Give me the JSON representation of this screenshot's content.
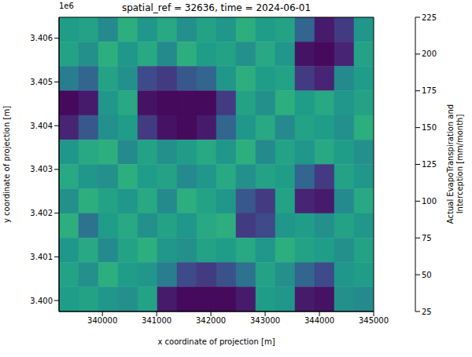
{
  "chart_data": {
    "type": "heatmap",
    "title": "spatial_ref = 32636, time = 2024-06-01",
    "x_label": "x coordinate of projection [m]",
    "y_label": "y coordinate of projection [m]",
    "y_offset": "1e6",
    "xlim": [
      339200,
      345000
    ],
    "xticks": [
      340000,
      341000,
      342000,
      343000,
      344000,
      345000
    ],
    "ylim": [
      3399750,
      3406480
    ],
    "yticks": [
      {
        "value": 3400000,
        "label": "3.400"
      },
      {
        "value": 3401000,
        "label": "3.401"
      },
      {
        "value": 3402000,
        "label": "3.402"
      },
      {
        "value": 3403000,
        "label": "3.403"
      },
      {
        "value": 3404000,
        "label": "3.404"
      },
      {
        "value": 3405000,
        "label": "3.405"
      },
      {
        "value": 3406000,
        "label": "3.406"
      }
    ],
    "grid": false,
    "z": [
      [
        135,
        140,
        120,
        150,
        130,
        145,
        125,
        140,
        130,
        150,
        135,
        140,
        90,
        40,
        60,
        130
      ],
      [
        140,
        125,
        150,
        130,
        145,
        120,
        150,
        135,
        140,
        125,
        145,
        130,
        35,
        30,
        45,
        140
      ],
      [
        110,
        90,
        140,
        125,
        70,
        60,
        80,
        90,
        130,
        150,
        135,
        140,
        60,
        45,
        120,
        135
      ],
      [
        30,
        40,
        130,
        145,
        35,
        30,
        30,
        30,
        60,
        140,
        125,
        150,
        135,
        145,
        130,
        140
      ],
      [
        45,
        80,
        125,
        135,
        60,
        35,
        30,
        40,
        90,
        130,
        145,
        120,
        140,
        135,
        125,
        150
      ],
      [
        130,
        145,
        150,
        120,
        140,
        125,
        135,
        145,
        130,
        150,
        120,
        140,
        130,
        145,
        135,
        125
      ],
      [
        145,
        130,
        125,
        150,
        135,
        140,
        120,
        130,
        145,
        125,
        140,
        135,
        90,
        60,
        140,
        130
      ],
      [
        125,
        150,
        140,
        130,
        145,
        120,
        150,
        140,
        130,
        80,
        60,
        140,
        45,
        40,
        120,
        145
      ],
      [
        150,
        100,
        135,
        145,
        125,
        140,
        130,
        145,
        150,
        60,
        70,
        130,
        135,
        125,
        140,
        130
      ],
      [
        130,
        145,
        120,
        140,
        150,
        130,
        125,
        140,
        135,
        145,
        130,
        150,
        140,
        135,
        125,
        140
      ],
      [
        140,
        125,
        150,
        135,
        130,
        110,
        70,
        60,
        75,
        100,
        140,
        125,
        90,
        70,
        130,
        135
      ],
      [
        135,
        140,
        130,
        125,
        140,
        40,
        30,
        30,
        30,
        40,
        135,
        130,
        40,
        35,
        125,
        120
      ]
    ],
    "colorbar": {
      "label": "Actual EvapoTranspiration and\nInterception [mm/month]",
      "range": [
        25,
        225
      ],
      "ticks": [
        25,
        50,
        75,
        100,
        125,
        150,
        175,
        200,
        225
      ]
    }
  }
}
